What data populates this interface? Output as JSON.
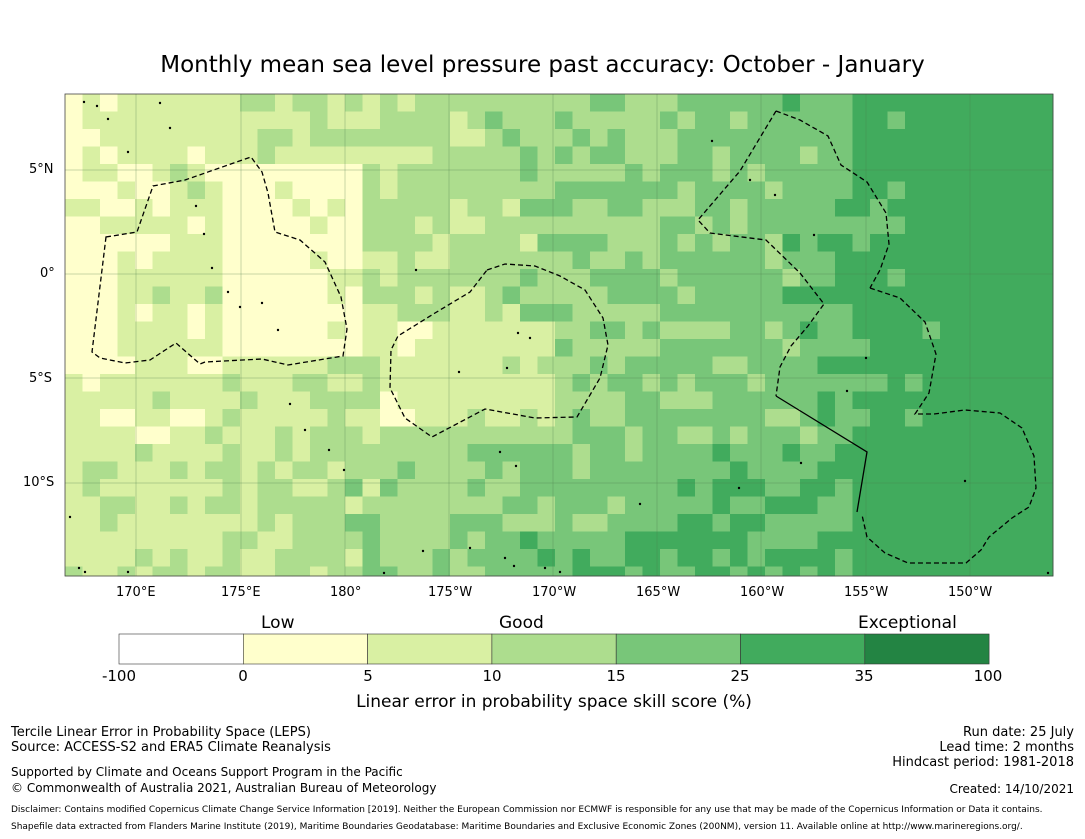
{
  "title": "Monthly mean sea level pressure past accuracy: October - January",
  "map": {
    "lat_labels": [
      "5°N",
      "0°",
      "5°S",
      "10°S"
    ],
    "lon_labels": [
      "170°E",
      "175°E",
      "180°",
      "175°W",
      "170°W",
      "165°W",
      "160°W",
      "155°W",
      "150°W"
    ]
  },
  "colorbar": {
    "categories": [
      "Low",
      "Good",
      "Exceptional"
    ],
    "ticks": [
      "-100",
      "0",
      "5",
      "10",
      "15",
      "25",
      "35",
      "100"
    ],
    "colors": [
      "#ffffff",
      "#ffffcc",
      "#d9f0a3",
      "#addd8e",
      "#78c679",
      "#41ab5d",
      "#238443"
    ],
    "title": "Linear error in probability space skill score (%)"
  },
  "footer": {
    "line1": "Tercile Linear Error in Probability Space (LEPS)",
    "line2": "Source: ACCESS-S2 and ERA5 Climate Reanalysis",
    "line3": "Supported by Climate and Oceans Support Program in the Pacific",
    "line4": "© Commonwealth of Australia 2021, Australian Bureau of Meteorology",
    "run_date": "Run date: 25 July",
    "lead_time": "Lead time: 2 months",
    "hindcast": "Hindcast period: 1981-2018",
    "created": "Created: 14/10/2021",
    "disclaimer1": "Disclaimer: Contains modified Copernicus Climate Change Service Information [2019]. Neither the European Commission nor ECMWF is responsible for any use that may be made of the Copernicus Information or Data it contains.",
    "disclaimer2": "Shapefile data extracted from Flanders Marine Institute (2019), Maritime Boundaries Geodatabase: Maritime Boundaries and Exclusive Economic Zones (200NM), version 11. Available online at http://www.marineregions.org/."
  }
}
